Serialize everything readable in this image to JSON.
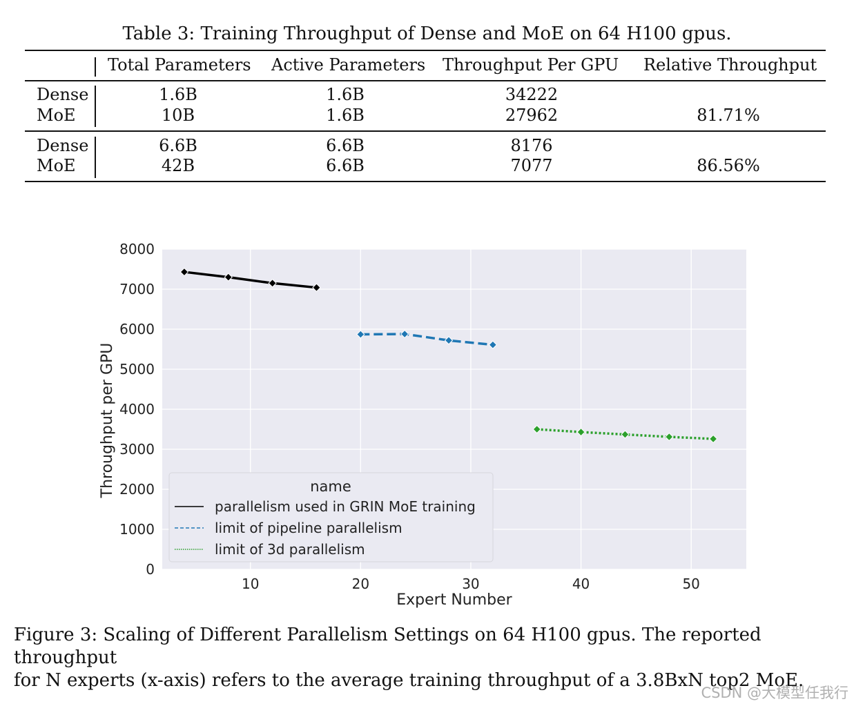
{
  "table": {
    "caption": "Table 3: Training Throughput of Dense and MoE on 64 H100 gpus.",
    "headers": [
      "Total Parameters",
      "Active Parameters",
      "Throughput Per GPU",
      "Relative Throughput"
    ],
    "groups": [
      {
        "rows": [
          {
            "model": "Dense",
            "total": "1.6B",
            "active": "1.6B",
            "throughput": "34222",
            "relative": ""
          },
          {
            "model": "MoE",
            "total": "10B",
            "active": "1.6B",
            "throughput": "27962",
            "relative": "81.71%"
          }
        ]
      },
      {
        "rows": [
          {
            "model": "Dense",
            "total": "6.6B",
            "active": "6.6B",
            "throughput": "8176",
            "relative": ""
          },
          {
            "model": "MoE",
            "total": "42B",
            "active": "6.6B",
            "throughput": "7077",
            "relative": "86.56%"
          }
        ]
      }
    ]
  },
  "chart_data": {
    "type": "line",
    "title": "",
    "xlabel": "Expert Number",
    "ylabel": "Throughput per GPU",
    "xlim": [
      2,
      55
    ],
    "ylim": [
      0,
      8000
    ],
    "xticks": [
      10,
      20,
      30,
      40,
      50
    ],
    "yticks": [
      0,
      1000,
      2000,
      3000,
      4000,
      5000,
      6000,
      7000,
      8000
    ],
    "grid": true,
    "legend_title": "name",
    "legend_position": "lower-left",
    "series": [
      {
        "name": "parallelism used in GRIN MoE training",
        "color": "#000000",
        "style": "solid",
        "x": [
          4,
          8,
          12,
          16
        ],
        "y": [
          7430,
          7300,
          7150,
          7040
        ]
      },
      {
        "name": "limit of pipeline parallelism",
        "color": "#1f77b4",
        "style": "dashed",
        "x": [
          20,
          24,
          28,
          32
        ],
        "y": [
          5870,
          5880,
          5720,
          5610
        ]
      },
      {
        "name": "limit of 3d parallelism",
        "color": "#2ca02c",
        "style": "dotted",
        "x": [
          36,
          40,
          44,
          48,
          52
        ],
        "y": [
          3500,
          3430,
          3370,
          3310,
          3260
        ]
      }
    ]
  },
  "figure_caption": {
    "line1": "Figure 3: Scaling of Different Parallelism Settings on 64 H100 gpus. The reported throughput",
    "line2": "for N experts (x-axis) refers to the average training throughput of a 3.8BxN top2 MoE."
  },
  "watermark": "CSDN @大模型任我行"
}
